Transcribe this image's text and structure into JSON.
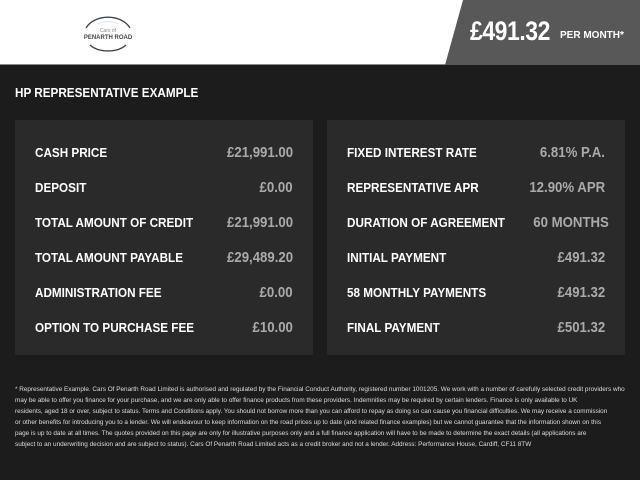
{
  "header": {
    "logo_text_top": "Cars of",
    "logo_text_bottom": "PENARTH ROAD",
    "price": "£491.32",
    "per_month": "PER MONTH*"
  },
  "section_title": "HP REPRESENTATIVE EXAMPLE",
  "left_rows": [
    {
      "label": "CASH PRICE",
      "value": "£21,991.00"
    },
    {
      "label": "DEPOSIT",
      "value": "£0.00"
    },
    {
      "label": "TOTAL AMOUNT OF CREDIT",
      "value": "£21,991.00"
    },
    {
      "label": "TOTAL AMOUNT PAYABLE",
      "value": "£29,489.20"
    },
    {
      "label": "ADMINISTRATION FEE",
      "value": "£0.00"
    },
    {
      "label": "OPTION TO PURCHASE FEE",
      "value": "£10.00"
    }
  ],
  "right_rows": [
    {
      "label": "FIXED INTEREST RATE",
      "value": "6.81% P.A."
    },
    {
      "label": "REPRESENTATIVE APR",
      "value": "12.90% APR"
    },
    {
      "label": "DURATION OF AGREEMENT",
      "value": "60 MONTHS"
    },
    {
      "label": "INITIAL PAYMENT",
      "value": "£491.32"
    },
    {
      "label": "58 MONTHLY PAYMENTS",
      "value": "£491.32"
    },
    {
      "label": "FINAL PAYMENT",
      "value": "£501.32"
    }
  ],
  "footer_lines": [
    "* Representative Example. Cars Of Penarth Road Limited is authorised and regulated by the Financial Conduct Authority, registered number 1001205. We work with a number of carefully selected credit providers who",
    "may be able to offer you finance for your purchase, and we are only able to offer finance products from these providers. Indemnities may be required by certain lenders. Finance is only available to UK",
    "residents, aged 18 or over, subject to status. Terms and Conditions apply. You should not borrow more than you can afford to repay as doing so can cause you financial difficulties. We may receive a commission",
    "or other benefits for introducing you to a lender. We will endeavour to keep information on the road prices up to date (and related finance examples) but we cannot guarantee that the information shown on this",
    "page is up to date at all times. The quotes provided on this page are only for illustrative purposes only and a full finance application will have to be made to determine the exact details (all applications are",
    "subject to an underwriting decision and are subject to status). Cars Of Penarth Road Limited acts as a credit broker and not a lender. Address: Performance House, Cardiff, CF11 8TW"
  ]
}
